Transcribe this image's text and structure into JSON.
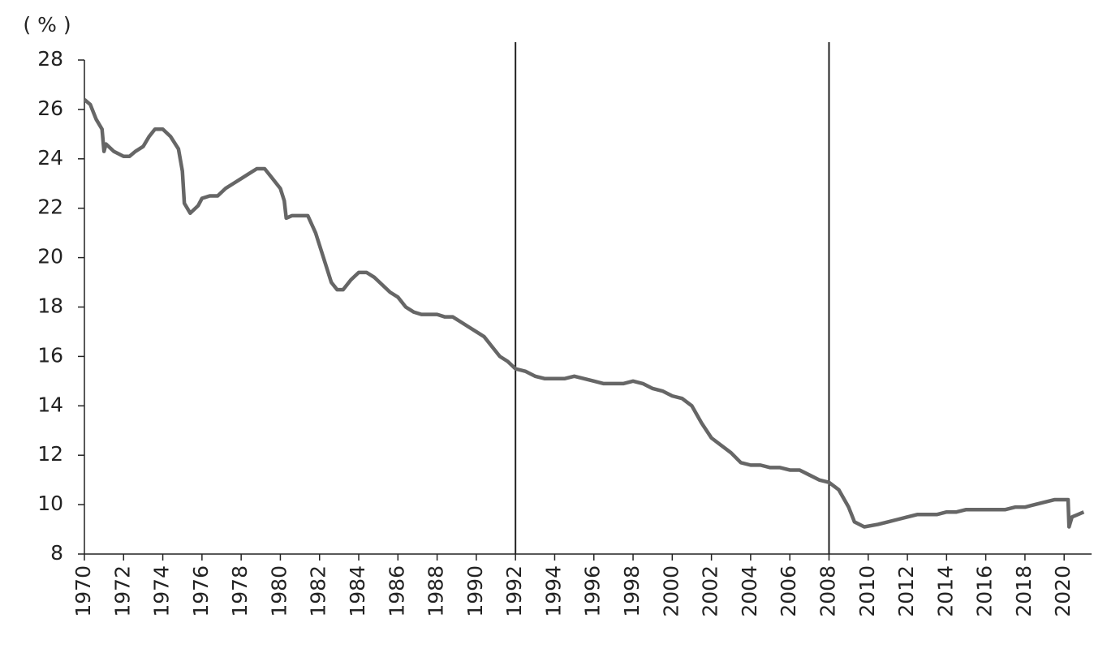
{
  "chart_data": {
    "type": "line",
    "y_label": "( % )",
    "x": [
      1970.0,
      1970.3,
      1970.6,
      1970.9,
      1971.0,
      1971.1,
      1971.5,
      1972.0,
      1972.3,
      1972.6,
      1973.0,
      1973.3,
      1973.6,
      1974.0,
      1974.4,
      1974.8,
      1975.0,
      1975.1,
      1975.4,
      1975.8,
      1976.0,
      1976.4,
      1976.8,
      1977.2,
      1977.6,
      1978.0,
      1978.4,
      1978.8,
      1979.2,
      1979.6,
      1980.0,
      1980.2,
      1980.3,
      1980.6,
      1981.0,
      1981.4,
      1981.8,
      1982.2,
      1982.6,
      1982.9,
      1983.2,
      1983.6,
      1984.0,
      1984.4,
      1984.8,
      1985.2,
      1985.6,
      1986.0,
      1986.4,
      1986.8,
      1987.2,
      1987.6,
      1988.0,
      1988.4,
      1988.8,
      1989.2,
      1989.6,
      1990.0,
      1990.4,
      1990.8,
      1991.2,
      1991.6,
      1992.0,
      1992.5,
      1993.0,
      1993.5,
      1994.0,
      1994.5,
      1995.0,
      1995.5,
      1996.0,
      1996.5,
      1997.0,
      1997.5,
      1998.0,
      1998.5,
      1999.0,
      1999.5,
      2000.0,
      2000.5,
      2001.0,
      2001.5,
      2002.0,
      2002.5,
      2003.0,
      2003.5,
      2004.0,
      2004.5,
      2005.0,
      2005.5,
      2006.0,
      2006.5,
      2007.0,
      2007.5,
      2008.0,
      2008.5,
      2009.0,
      2009.3,
      2009.8,
      2010.5,
      2011.0,
      2011.5,
      2012.0,
      2012.5,
      2013.0,
      2013.5,
      2014.0,
      2014.5,
      2015.0,
      2015.5,
      2016.0,
      2016.5,
      2017.0,
      2017.5,
      2018.0,
      2018.5,
      2019.0,
      2019.5,
      2020.0,
      2020.2,
      2020.25,
      2020.4,
      2020.7,
      2021.0
    ],
    "series": [
      {
        "color": "#666666",
        "values": [
          26.4,
          26.2,
          25.6,
          25.2,
          24.3,
          24.6,
          24.3,
          24.1,
          24.1,
          24.3,
          24.5,
          24.9,
          25.2,
          25.2,
          24.9,
          24.4,
          23.5,
          22.2,
          21.8,
          22.1,
          22.4,
          22.5,
          22.5,
          22.8,
          23.0,
          23.2,
          23.4,
          23.6,
          23.6,
          23.2,
          22.8,
          22.3,
          21.6,
          21.7,
          21.7,
          21.7,
          21.0,
          20.0,
          19.0,
          18.7,
          18.7,
          19.1,
          19.4,
          19.4,
          19.2,
          18.9,
          18.6,
          18.4,
          18.0,
          17.8,
          17.7,
          17.7,
          17.7,
          17.6,
          17.6,
          17.4,
          17.2,
          17.0,
          16.8,
          16.4,
          16.0,
          15.8,
          15.5,
          15.4,
          15.2,
          15.1,
          15.1,
          15.1,
          15.2,
          15.1,
          15.0,
          14.9,
          14.9,
          14.9,
          15.0,
          14.9,
          14.7,
          14.6,
          14.4,
          14.3,
          14.0,
          13.3,
          12.7,
          12.4,
          12.1,
          11.7,
          11.6,
          11.6,
          11.5,
          11.5,
          11.4,
          11.4,
          11.2,
          11.0,
          10.9,
          10.6,
          9.9,
          9.3,
          9.1,
          9.2,
          9.3,
          9.4,
          9.5,
          9.6,
          9.6,
          9.6,
          9.7,
          9.7,
          9.8,
          9.8,
          9.8,
          9.8,
          9.8,
          9.9,
          9.9,
          10.0,
          10.1,
          10.2,
          10.2,
          10.2,
          9.1,
          9.5,
          9.6,
          9.7
        ]
      }
    ],
    "xlim": [
      1970,
      2021.4
    ],
    "xticks": [
      1970,
      1972,
      1974,
      1976,
      1978,
      1980,
      1982,
      1984,
      1986,
      1988,
      1990,
      1992,
      1994,
      1996,
      1998,
      2000,
      2002,
      2004,
      2006,
      2008,
      2010,
      2012,
      2014,
      2016,
      2018,
      2020
    ],
    "ylim": [
      8,
      28
    ],
    "yticks": [
      8,
      10,
      12,
      14,
      16,
      18,
      20,
      22,
      24,
      26,
      28
    ],
    "vlines": [
      1992,
      2008
    ],
    "vline_color": "#222222"
  }
}
